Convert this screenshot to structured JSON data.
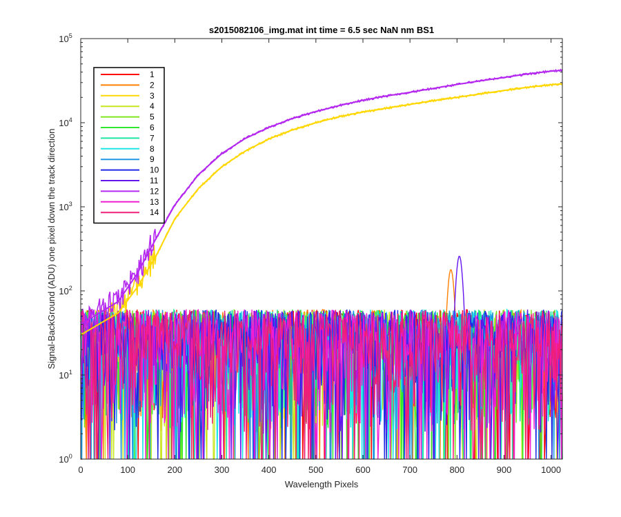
{
  "chart_data": {
    "type": "line",
    "title": "s2015082106_img.mat int time = 6.5 sec  NaN nm BS1",
    "xlabel": "Wavelength Pixels",
    "ylabel": "Signal-BackGround (ADU) one pixel down the track direction",
    "xlim": [
      0,
      1024
    ],
    "ylim": [
      1,
      100000
    ],
    "yscale": "log",
    "xticks": [
      0,
      100,
      200,
      300,
      400,
      500,
      600,
      700,
      800,
      900,
      1000
    ],
    "yticks": [
      {
        "value": 1,
        "base": "10",
        "exp": "0"
      },
      {
        "value": 10,
        "base": "10",
        "exp": "1"
      },
      {
        "value": 100,
        "base": "10",
        "exp": "2"
      },
      {
        "value": 1000,
        "base": "10",
        "exp": "3"
      },
      {
        "value": 10000,
        "base": "10",
        "exp": "4"
      },
      {
        "value": 100000,
        "base": "10",
        "exp": "5"
      }
    ],
    "grid": false,
    "legend_position": "top-left",
    "series": [
      {
        "name": "1",
        "color": "#ff0000",
        "shape": "noise"
      },
      {
        "name": "2",
        "color": "#ff7f00",
        "shape": "noise-peak",
        "peak": {
          "x": 787,
          "y": 180
        }
      },
      {
        "name": "3",
        "color": "#ffd700",
        "shape": "curve",
        "x": [
          0,
          80,
          120,
          160,
          200,
          250,
          300,
          350,
          400,
          450,
          500,
          550,
          600,
          650,
          700,
          750,
          800,
          850,
          900,
          950,
          1000,
          1024
        ],
        "y": [
          30,
          55,
          110,
          260,
          720,
          1650,
          3000,
          4600,
          6400,
          8200,
          10000,
          11800,
          13400,
          14900,
          16500,
          18300,
          20000,
          22000,
          24200,
          26400,
          28300,
          29000
        ]
      },
      {
        "name": "4",
        "color": "#c8e61e",
        "shape": "noise"
      },
      {
        "name": "5",
        "color": "#7fe61e",
        "shape": "noise"
      },
      {
        "name": "6",
        "color": "#2ee82e",
        "shape": "noise"
      },
      {
        "name": "7",
        "color": "#1ee6a0",
        "shape": "noise"
      },
      {
        "name": "8",
        "color": "#1ee6e6",
        "shape": "noise"
      },
      {
        "name": "9",
        "color": "#1e96e6",
        "shape": "noise"
      },
      {
        "name": "10",
        "color": "#1e28e6",
        "shape": "noise"
      },
      {
        "name": "11",
        "color": "#6414f0",
        "shape": "noise-peak",
        "peak": {
          "x": 805,
          "y": 260
        }
      },
      {
        "name": "12",
        "color": "#b428f0",
        "shape": "curve",
        "x": [
          0,
          80,
          120,
          160,
          200,
          250,
          300,
          350,
          400,
          450,
          500,
          550,
          600,
          650,
          700,
          750,
          800,
          850,
          900,
          950,
          1000,
          1024
        ],
        "y": [
          40,
          75,
          160,
          420,
          1050,
          2400,
          4300,
          6500,
          8800,
          11200,
          13600,
          16000,
          18500,
          20800,
          23000,
          25600,
          28500,
          31500,
          34500,
          38000,
          41000,
          42000
        ]
      },
      {
        "name": "13",
        "color": "#f01ed2",
        "shape": "noise"
      },
      {
        "name": "14",
        "color": "#f01e78",
        "shape": "noise"
      }
    ]
  }
}
